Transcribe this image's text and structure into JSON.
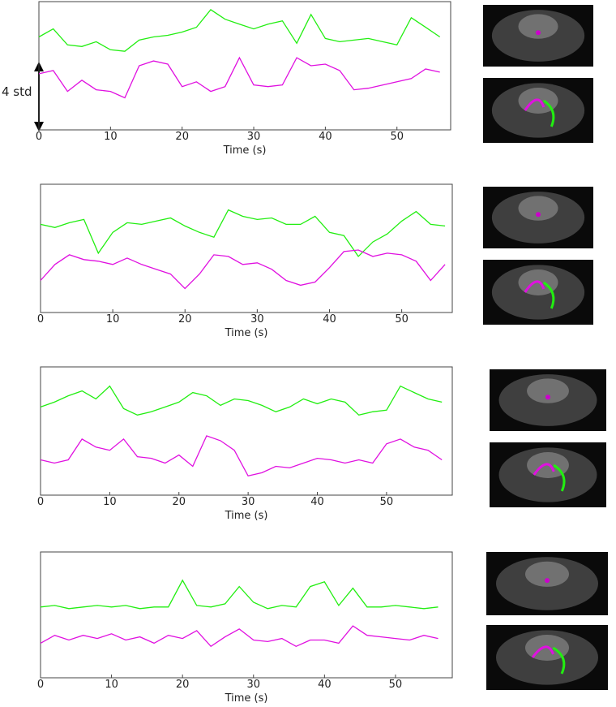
{
  "chart_data": [
    {
      "type": "line",
      "xlabel": "Time (s)",
      "annotation": "4 std",
      "x": [
        0,
        2,
        4,
        6,
        8,
        10,
        12,
        14,
        16,
        18,
        20,
        22,
        24,
        26,
        28,
        30,
        32,
        34,
        36,
        38,
        40,
        42,
        44,
        46,
        48,
        50,
        52,
        54,
        56
      ],
      "xlim": [
        0,
        57.5
      ],
      "xticks": [
        0,
        10,
        20,
        30,
        40,
        50
      ],
      "ylim": [
        -4,
        4
      ],
      "series": [
        {
          "color": "#22ee11",
          "values": [
            1.8,
            2.3,
            1.3,
            1.2,
            1.5,
            1.0,
            0.9,
            1.6,
            1.8,
            1.9,
            2.1,
            2.4,
            3.5,
            2.9,
            2.6,
            2.3,
            2.6,
            2.8,
            1.4,
            3.2,
            1.7,
            1.5,
            1.6,
            1.7,
            1.5,
            1.3,
            3.0,
            2.4,
            1.8
          ]
        },
        {
          "color": "#e010e0",
          "values": [
            -0.5,
            -0.3,
            -1.6,
            -0.9,
            -1.5,
            -1.6,
            -2.0,
            0.0,
            0.3,
            0.1,
            -1.3,
            -1.0,
            -1.6,
            -1.3,
            0.5,
            -1.2,
            -1.3,
            -1.2,
            0.5,
            0.0,
            0.1,
            -0.3,
            -1.5,
            -1.4,
            -1.2,
            -1.0,
            -0.8,
            -0.2,
            -0.4
          ]
        }
      ]
    },
    {
      "type": "line",
      "xlabel": "Time (s)",
      "x": [
        0,
        2,
        4,
        6,
        8,
        10,
        12,
        14,
        16,
        18,
        20,
        22,
        24,
        26,
        28,
        30,
        32,
        34,
        36,
        38,
        40,
        42,
        44,
        46,
        48,
        50,
        52,
        54,
        56
      ],
      "xlim": [
        0,
        57
      ],
      "xticks": [
        0,
        10,
        20,
        30,
        40,
        50
      ],
      "ylim": [
        -4,
        4
      ],
      "series": [
        {
          "color": "#22ee11",
          "values": [
            1.5,
            1.3,
            1.6,
            1.8,
            -0.3,
            1.0,
            1.6,
            1.5,
            1.7,
            1.9,
            1.4,
            1.0,
            0.7,
            2.4,
            2.0,
            1.8,
            1.9,
            1.5,
            1.5,
            2.0,
            1.0,
            0.8,
            -0.5,
            0.4,
            0.9,
            1.7,
            2.3,
            1.5,
            1.4
          ]
        },
        {
          "color": "#e010e0",
          "values": [
            -2.0,
            -1.0,
            -0.4,
            -0.7,
            -0.8,
            -1.0,
            -0.6,
            -1.0,
            -1.3,
            -1.6,
            -2.5,
            -1.6,
            -0.4,
            -0.5,
            -1.0,
            -0.9,
            -1.3,
            -2.0,
            -2.3,
            -2.1,
            -1.2,
            -0.2,
            -0.1,
            -0.5,
            -0.3,
            -0.4,
            -0.8,
            -2.0,
            -1.0
          ]
        }
      ]
    },
    {
      "type": "line",
      "xlabel": "Time (s)",
      "x": [
        0,
        2,
        4,
        6,
        8,
        10,
        12,
        14,
        16,
        18,
        20,
        22,
        24,
        26,
        28,
        30,
        32,
        34,
        36,
        38,
        40,
        42,
        44,
        46,
        48,
        50,
        52,
        54,
        56,
        58
      ],
      "xlim": [
        0,
        59.5
      ],
      "xticks": [
        0,
        10,
        20,
        30,
        40,
        50
      ],
      "ylim": [
        -4,
        4
      ],
      "series": [
        {
          "color": "#22ee11",
          "values": [
            1.5,
            1.8,
            2.2,
            2.5,
            2.0,
            2.8,
            1.4,
            1.0,
            1.2,
            1.5,
            1.8,
            2.4,
            2.2,
            1.6,
            2.0,
            1.9,
            1.6,
            1.2,
            1.5,
            2.0,
            1.7,
            2.0,
            1.8,
            1.0,
            1.2,
            1.3,
            2.8,
            2.4,
            2.0,
            1.8
          ]
        },
        {
          "color": "#e010e0",
          "values": [
            -1.8,
            -2.0,
            -1.8,
            -0.5,
            -1.0,
            -1.2,
            -0.5,
            -1.6,
            -1.7,
            -2.0,
            -1.5,
            -2.2,
            -0.3,
            -0.6,
            -1.2,
            -2.8,
            -2.6,
            -2.2,
            -2.3,
            -2.0,
            -1.7,
            -1.8,
            -2.0,
            -1.8,
            -2.0,
            -0.8,
            -0.5,
            -1.0,
            -1.2,
            -1.8
          ]
        }
      ]
    },
    {
      "type": "line",
      "xlabel": "Time (s)",
      "x": [
        0,
        2,
        4,
        6,
        8,
        10,
        12,
        14,
        16,
        18,
        20,
        22,
        24,
        26,
        28,
        30,
        32,
        34,
        36,
        38,
        40,
        42,
        44,
        46,
        48,
        50,
        52,
        54,
        56
      ],
      "xlim": [
        0,
        58
      ],
      "xticks": [
        0,
        10,
        20,
        30,
        40,
        50
      ],
      "ylim": [
        -4,
        4
      ],
      "series": [
        {
          "color": "#22ee11",
          "values": [
            0.5,
            0.6,
            0.4,
            0.5,
            0.6,
            0.5,
            0.6,
            0.4,
            0.5,
            0.5,
            2.2,
            0.6,
            0.5,
            0.7,
            1.8,
            0.8,
            0.4,
            0.6,
            0.5,
            1.8,
            2.1,
            0.6,
            1.7,
            0.5,
            0.5,
            0.6,
            0.5,
            0.4,
            0.5
          ]
        },
        {
          "color": "#e010e0",
          "values": [
            -1.8,
            -1.3,
            -1.6,
            -1.3,
            -1.5,
            -1.2,
            -1.6,
            -1.4,
            -1.8,
            -1.3,
            -1.5,
            -1.0,
            -2.0,
            -1.4,
            -0.9,
            -1.6,
            -1.7,
            -1.5,
            -2.0,
            -1.6,
            -1.6,
            -1.8,
            -0.7,
            -1.3,
            -1.4,
            -1.5,
            -1.6,
            -1.3,
            -1.5
          ]
        }
      ]
    }
  ]
}
